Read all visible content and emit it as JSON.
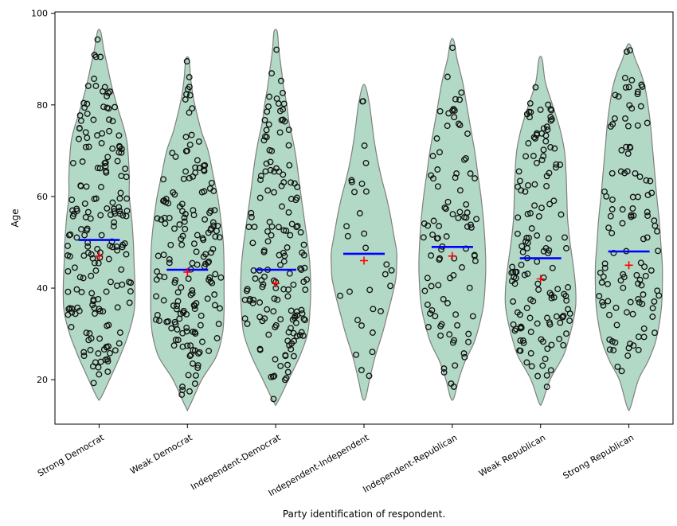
{
  "chart_data": {
    "type": "violin",
    "title": "",
    "xlabel": "Party identification of respondent.",
    "ylabel": "Age",
    "ylim": [
      10.3,
      100.3
    ],
    "yticks": [
      20,
      40,
      60,
      80,
      100
    ],
    "grid": false,
    "legend": "none",
    "marker_semantics": {
      "blue_line": "median per group",
      "red_plus": "mean per group",
      "open_circles": "jittered individual respondent ages"
    },
    "colors": {
      "violin_fill": "#b1d9c6",
      "violin_edge": "#7f7f7f",
      "median_line": "#0000ff",
      "mean_marker": "#ff0000",
      "point_edge": "#111111",
      "axis": "#000000",
      "background": "#ffffff"
    },
    "categories": [
      "Strong Democrat",
      "Weak Democrat",
      "Independent-Democrat",
      "Independent-Independent",
      "Independent-Republican",
      "Weak Republican",
      "Strong Republican"
    ],
    "series": [
      {
        "label": "Strong Democrat",
        "n_points_approx": 190,
        "median": 50.5,
        "mean": 47,
        "age_min": 16,
        "age_max": 96,
        "profile": [
          [
            96,
            2
          ],
          [
            92,
            6
          ],
          [
            88,
            11
          ],
          [
            84,
            16
          ],
          [
            79,
            24
          ],
          [
            75,
            31
          ],
          [
            72,
            35
          ],
          [
            68,
            37
          ],
          [
            64,
            38
          ],
          [
            60,
            38
          ],
          [
            55,
            41
          ],
          [
            50,
            43
          ],
          [
            45,
            44
          ],
          [
            40,
            45
          ],
          [
            35,
            44
          ],
          [
            30,
            37
          ],
          [
            25,
            26
          ],
          [
            20,
            13
          ],
          [
            16,
            2
          ]
        ]
      },
      {
        "label": "Weak Democrat",
        "n_points_approx": 175,
        "median": 44,
        "mean": 43.5,
        "age_min": 14,
        "age_max": 90,
        "profile": [
          [
            90,
            2
          ],
          [
            86,
            4
          ],
          [
            82,
            7
          ],
          [
            78,
            12
          ],
          [
            74,
            18
          ],
          [
            70,
            26
          ],
          [
            65,
            32
          ],
          [
            60,
            38
          ],
          [
            55,
            42
          ],
          [
            50,
            45
          ],
          [
            45,
            46
          ],
          [
            40,
            46
          ],
          [
            35,
            46
          ],
          [
            30,
            44
          ],
          [
            25,
            36
          ],
          [
            20,
            18
          ],
          [
            14,
            2
          ]
        ]
      },
      {
        "label": "Independent-Democrat",
        "n_points_approx": 160,
        "median": 44,
        "mean": 41,
        "age_min": 15,
        "age_max": 96,
        "profile": [
          [
            96,
            2
          ],
          [
            92,
            4
          ],
          [
            88,
            7
          ],
          [
            84,
            10
          ],
          [
            80,
            14
          ],
          [
            76,
            17
          ],
          [
            72,
            22
          ],
          [
            68,
            26
          ],
          [
            64,
            29
          ],
          [
            60,
            32
          ],
          [
            55,
            36
          ],
          [
            50,
            40
          ],
          [
            45,
            43
          ],
          [
            40,
            44
          ],
          [
            35,
            43
          ],
          [
            30,
            40
          ],
          [
            25,
            30
          ],
          [
            20,
            16
          ],
          [
            15,
            2
          ]
        ]
      },
      {
        "label": "Independent-Independent",
        "n_points_approx": 30,
        "median": 47.5,
        "mean": 46,
        "age_min": 16,
        "age_max": 84,
        "profile": [
          [
            84,
            2
          ],
          [
            80,
            7
          ],
          [
            76,
            10
          ],
          [
            72,
            13
          ],
          [
            68,
            17
          ],
          [
            64,
            22
          ],
          [
            60,
            28
          ],
          [
            56,
            33
          ],
          [
            52,
            37
          ],
          [
            48,
            41
          ],
          [
            45,
            41
          ],
          [
            42,
            40
          ],
          [
            38,
            35
          ],
          [
            34,
            29
          ],
          [
            30,
            23
          ],
          [
            25,
            14
          ],
          [
            20,
            7
          ],
          [
            16,
            2
          ]
        ]
      },
      {
        "label": "Independent-Republican",
        "n_points_approx": 95,
        "median": 49,
        "mean": 47,
        "age_min": 16,
        "age_max": 94,
        "profile": [
          [
            94,
            2
          ],
          [
            90,
            6
          ],
          [
            85,
            13
          ],
          [
            80,
            18
          ],
          [
            75,
            23
          ],
          [
            70,
            28
          ],
          [
            65,
            32
          ],
          [
            60,
            36
          ],
          [
            55,
            39
          ],
          [
            50,
            41
          ],
          [
            45,
            42
          ],
          [
            40,
            41
          ],
          [
            36,
            39
          ],
          [
            32,
            34
          ],
          [
            28,
            27
          ],
          [
            24,
            16
          ],
          [
            20,
            8
          ],
          [
            16,
            2
          ]
        ]
      },
      {
        "label": "Weak Republican",
        "n_points_approx": 145,
        "median": 46.5,
        "mean": 42,
        "age_min": 15,
        "age_max": 90,
        "profile": [
          [
            90,
            2
          ],
          [
            85,
            6
          ],
          [
            80,
            15
          ],
          [
            75,
            24
          ],
          [
            70,
            30
          ],
          [
            65,
            32
          ],
          [
            60,
            33
          ],
          [
            55,
            34
          ],
          [
            50,
            37
          ],
          [
            45,
            41
          ],
          [
            40,
            44
          ],
          [
            36,
            44
          ],
          [
            32,
            40
          ],
          [
            28,
            34
          ],
          [
            25,
            28
          ],
          [
            20,
            12
          ],
          [
            15,
            2
          ]
        ]
      },
      {
        "label": "Strong Republican",
        "n_points_approx": 115,
        "median": 48,
        "mean": 45,
        "age_min": 14,
        "age_max": 93,
        "profile": [
          [
            93,
            2
          ],
          [
            90,
            8
          ],
          [
            87,
            15
          ],
          [
            84,
            20
          ],
          [
            80,
            24
          ],
          [
            76,
            27
          ],
          [
            72,
            29
          ],
          [
            68,
            31
          ],
          [
            64,
            33
          ],
          [
            60,
            35
          ],
          [
            55,
            38
          ],
          [
            50,
            40
          ],
          [
            45,
            42
          ],
          [
            40,
            42
          ],
          [
            36,
            41
          ],
          [
            32,
            38
          ],
          [
            28,
            33
          ],
          [
            24,
            24
          ],
          [
            20,
            12
          ],
          [
            14,
            2
          ]
        ]
      }
    ]
  }
}
